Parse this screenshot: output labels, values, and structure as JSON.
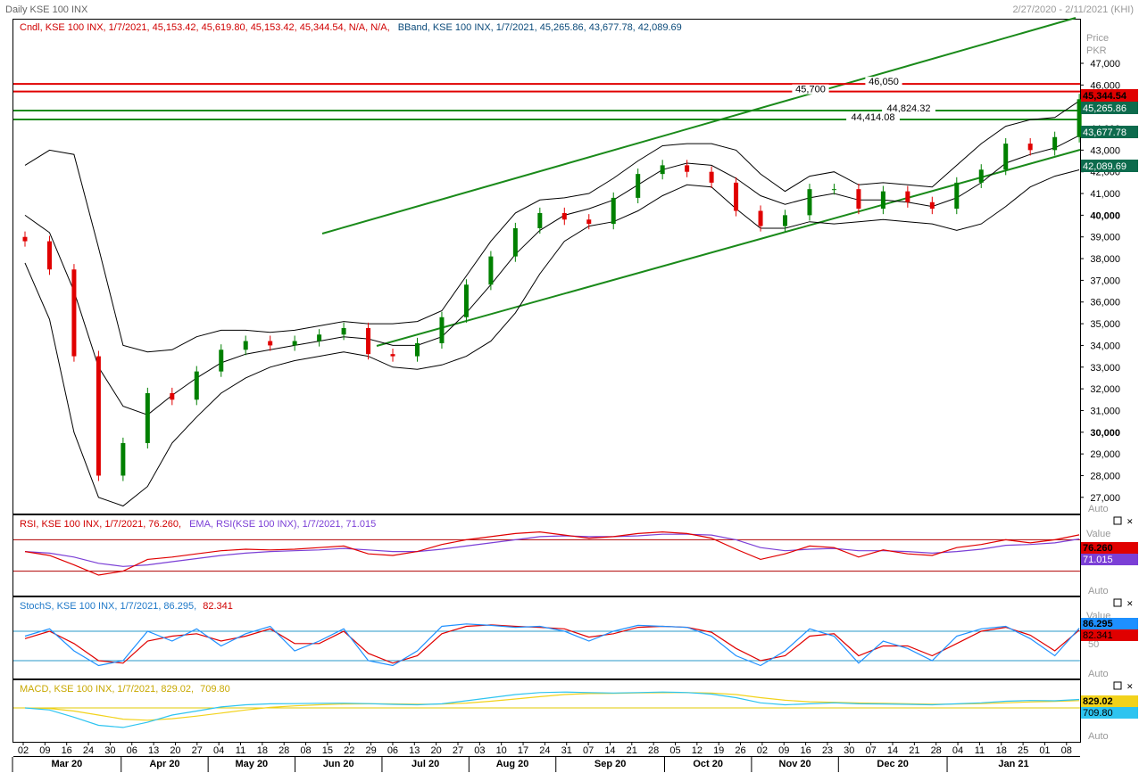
{
  "window": {
    "title": "Daily KSE 100 INX",
    "date_range": "2/27/2020 - 2/11/2021 (KHI)"
  },
  "colors": {
    "up": "#008000",
    "down": "#e00000",
    "band": "#000000",
    "channel": "#1a8a1a",
    "rsi": "#e00000",
    "rsi_ema": "#7b3fd6",
    "stoch_k": "#1e90ff",
    "stoch_d": "#e00000",
    "macd": "#f2d21b",
    "macd_signal": "#2ec4f0"
  },
  "price_panel": {
    "legend_cndl": "Cndl, KSE 100 INX, 1/7/2021, 45,153.42, 45,619.80, 45,153.42, 45,344.54, N/A, N/A,",
    "legend_bband": "BBand, KSE 100 INX, 1/7/2021, 45,265.86, 43,677.78, 42,089.69",
    "axis_title_1": "Price",
    "axis_title_2": "PKR",
    "auto_label": "Auto",
    "ticks": [
      "47,000",
      "46,000",
      "45,000",
      "44,000",
      "43,000",
      "42,000",
      "41,000",
      "40,000",
      "39,000",
      "38,000",
      "37,000",
      "36,000",
      "35,000",
      "34,000",
      "33,000",
      "32,000",
      "31,000",
      "30,000",
      "29,000",
      "28,000",
      "27,000"
    ],
    "tick_values": [
      47000,
      46000,
      45000,
      44000,
      43000,
      42000,
      41000,
      40000,
      39000,
      38000,
      37000,
      36000,
      35000,
      34000,
      33000,
      32000,
      31000,
      30000,
      29000,
      28000,
      27000
    ],
    "bold_ticks": [
      "40,000",
      "30,000"
    ],
    "hlines": [
      {
        "value": 46050,
        "label": "46,050",
        "color": "#e00000"
      },
      {
        "value": 45700,
        "label": "45,700",
        "color": "#e00000"
      },
      {
        "value": 44824.32,
        "label": "44,824.32",
        "color": "#1a8a1a"
      },
      {
        "value": 44414.08,
        "label": "44,414.08",
        "color": "#1a8a1a"
      }
    ],
    "badges": [
      {
        "value": 45344.54,
        "label": "45,344.54",
        "bg": "#e00000",
        "fg": "#000000"
      },
      {
        "value": 45265.86,
        "label": "45,265.86",
        "bg": "#0d6b4d",
        "fg": "#ffffff"
      },
      {
        "value": 43677.78,
        "label": "43,677.78",
        "bg": "#0d6b4d",
        "fg": "#ffffff"
      },
      {
        "value": 42089.69,
        "label": "42,089.69",
        "bg": "#0d6b4d",
        "fg": "#ffffff"
      }
    ]
  },
  "rsi_panel": {
    "legend_rsi": "RSI, KSE 100 INX, 1/7/2021, 76.260,",
    "legend_ema": "EMA, RSI(KSE 100 INX), 1/7/2021, 71.015",
    "axis_title": "Value",
    "auto_label": "Auto",
    "badge_rsi": "76.260",
    "badge_ema": "71.015"
  },
  "stoch_panel": {
    "legend_k": "StochS, KSE 100 INX, 1/7/2021, 86.295,",
    "legend_d": "82.341",
    "axis_title": "Value",
    "tick_50": "50",
    "auto_label": "Auto",
    "badge_k": "86.295",
    "badge_d": "82.341"
  },
  "macd_panel": {
    "legend_macd": "MACD, KSE 100 INX, 1/7/2021, 829.02,",
    "legend_signal": "709.80",
    "auto_label": "Auto",
    "badge_macd": "829.02",
    "badge_signal": "709.80"
  },
  "x_axis": {
    "days": [
      "02",
      "09",
      "16",
      "24",
      "30",
      "06",
      "13",
      "20",
      "27",
      "04",
      "11",
      "18",
      "28",
      "08",
      "15",
      "22",
      "29",
      "06",
      "13",
      "20",
      "27",
      "03",
      "10",
      "17",
      "24",
      "31",
      "07",
      "14",
      "21",
      "28",
      "05",
      "12",
      "19",
      "26",
      "02",
      "09",
      "16",
      "23",
      "30",
      "07",
      "14",
      "21",
      "28",
      "04",
      "11",
      "18",
      "25",
      "01",
      "08"
    ],
    "months": [
      {
        "label": "Mar 20",
        "day_index": 0
      },
      {
        "label": "Apr 20",
        "day_index": 5
      },
      {
        "label": "May 20",
        "day_index": 9
      },
      {
        "label": "Jun 20",
        "day_index": 13
      },
      {
        "label": "Jul 20",
        "day_index": 17
      },
      {
        "label": "Aug 20",
        "day_index": 21
      },
      {
        "label": "Sep 20",
        "day_index": 25
      },
      {
        "label": "Oct 20",
        "day_index": 30
      },
      {
        "label": "Nov 20",
        "day_index": 34
      },
      {
        "label": "Dec 20",
        "day_index": 38
      },
      {
        "label": "Jan 21",
        "day_index": 43
      }
    ]
  },
  "chart_data": {
    "type": "line",
    "title": "Daily KSE 100 INX",
    "ylabel": "Price PKR",
    "ylim": [
      26500,
      48000
    ],
    "week_labels": [
      "02 Mar",
      "09 Mar",
      "16 Mar",
      "24 Mar",
      "30 Mar",
      "06 Apr",
      "13 Apr",
      "20 Apr",
      "27 Apr",
      "04 May",
      "11 May",
      "18 May",
      "28 May",
      "08 Jun",
      "15 Jun",
      "22 Jun",
      "29 Jun",
      "06 Jul",
      "13 Jul",
      "20 Jul",
      "27 Jul",
      "03 Aug",
      "10 Aug",
      "17 Aug",
      "24 Aug",
      "31 Aug",
      "07 Sep",
      "14 Sep",
      "21 Sep",
      "28 Sep",
      "05 Oct",
      "12 Oct",
      "19 Oct",
      "26 Oct",
      "02 Nov",
      "09 Nov",
      "16 Nov",
      "23 Nov",
      "30 Nov",
      "07 Dec",
      "14 Dec",
      "21 Dec",
      "28 Dec",
      "04 Jan"
    ],
    "close": [
      38800,
      37500,
      33500,
      28000,
      29500,
      31800,
      31500,
      32800,
      33800,
      34200,
      34000,
      34200,
      34500,
      34800,
      33600,
      33500,
      34100,
      35300,
      36800,
      38100,
      39400,
      40100,
      39800,
      39600,
      40800,
      41900,
      42300,
      42000,
      41500,
      40200,
      39500,
      40000,
      41200,
      41200,
      40300,
      41100,
      40600,
      40300,
      41500,
      42100,
      43300,
      43000,
      43600,
      45344.54
    ],
    "series": [
      {
        "name": "BBand upper",
        "values": [
          42300,
          43000,
          42800,
          38500,
          34000,
          33700,
          33800,
          34400,
          34700,
          34700,
          34600,
          34700,
          34900,
          35100,
          35000,
          35000,
          35100,
          35600,
          37200,
          38800,
          40100,
          40700,
          40800,
          41000,
          41700,
          42500,
          43200,
          43300,
          43300,
          43000,
          41900,
          41100,
          41800,
          42000,
          41400,
          41500,
          41400,
          41300,
          42300,
          43300,
          44100,
          44400,
          44500,
          45265.86
        ]
      },
      {
        "name": "BBand middle",
        "values": [
          40000,
          39200,
          36500,
          33000,
          31200,
          30800,
          31700,
          32500,
          33200,
          33600,
          33800,
          34000,
          34200,
          34400,
          34300,
          34000,
          34000,
          34400,
          35500,
          36800,
          38200,
          39300,
          40000,
          40300,
          40700,
          41400,
          42100,
          42400,
          42300,
          41700,
          40900,
          40500,
          40800,
          41000,
          40700,
          40700,
          40600,
          40400,
          40800,
          41500,
          42400,
          42800,
          43100,
          43677.78
        ]
      },
      {
        "name": "BBand lower",
        "values": [
          37800,
          35200,
          30000,
          27000,
          26600,
          27500,
          29500,
          30700,
          31800,
          32500,
          33000,
          33300,
          33500,
          33700,
          33500,
          33000,
          32900,
          33100,
          33500,
          34200,
          35500,
          37300,
          38800,
          39500,
          39700,
          40200,
          40900,
          41400,
          41300,
          40300,
          39400,
          39400,
          39700,
          39600,
          39700,
          39800,
          39700,
          39600,
          39300,
          39600,
          40400,
          41300,
          41800,
          42089.69
        ]
      }
    ],
    "rsi": {
      "name": "RSI",
      "ylim": [
        0,
        100
      ],
      "levels": [
        70,
        30
      ],
      "last": 76.26,
      "ema_last": 71.015,
      "values": [
        55,
        50,
        38,
        25,
        30,
        45,
        48,
        52,
        56,
        58,
        57,
        58,
        60,
        62,
        52,
        50,
        55,
        64,
        70,
        74,
        78,
        80,
        76,
        72,
        74,
        78,
        80,
        78,
        72,
        58,
        45,
        52,
        62,
        60,
        48,
        57,
        52,
        50,
        60,
        64,
        70,
        66,
        70,
        76.26
      ],
      "ema": [
        55,
        53,
        48,
        40,
        36,
        38,
        42,
        46,
        50,
        53,
        55,
        56,
        57,
        59,
        57,
        55,
        55,
        58,
        62,
        66,
        70,
        74,
        75,
        74,
        74,
        75,
        77,
        77,
        76,
        70,
        60,
        56,
        58,
        59,
        56,
        56,
        55,
        53,
        55,
        58,
        63,
        64,
        66,
        71.015
      ]
    },
    "stoch": {
      "name": "StochS",
      "ylim": [
        0,
        100
      ],
      "levels": [
        80,
        20
      ],
      "k_last": 86.295,
      "d_last": 82.341,
      "k": [
        70,
        85,
        40,
        10,
        20,
        80,
        60,
        85,
        50,
        75,
        90,
        40,
        60,
        85,
        20,
        10,
        40,
        90,
        95,
        92,
        88,
        90,
        80,
        60,
        80,
        92,
        90,
        88,
        70,
        30,
        10,
        40,
        85,
        70,
        15,
        60,
        45,
        20,
        70,
        85,
        90,
        65,
        30,
        86.295
      ],
      "d": [
        65,
        80,
        55,
        20,
        15,
        60,
        70,
        75,
        60,
        70,
        85,
        55,
        55,
        80,
        35,
        15,
        30,
        75,
        90,
        93,
        90,
        88,
        85,
        68,
        75,
        88,
        90,
        88,
        78,
        45,
        20,
        30,
        70,
        75,
        30,
        50,
        50,
        30,
        55,
        80,
        88,
        72,
        40,
        82.341
      ]
    },
    "macd": {
      "name": "MACD",
      "last": 829.02,
      "signal_last": 709.8,
      "values": [
        0,
        -200,
        -900,
        -1700,
        -1900,
        -1400,
        -700,
        -300,
        100,
        300,
        400,
        420,
        450,
        460,
        420,
        350,
        300,
        400,
        700,
        1000,
        1300,
        1500,
        1550,
        1500,
        1450,
        1500,
        1550,
        1500,
        1350,
        1000,
        500,
        300,
        400,
        500,
        400,
        380,
        350,
        300,
        400,
        500,
        650,
        720,
        700,
        829.02
      ],
      "signal": [
        0,
        -50,
        -300,
        -700,
        -1100,
        -1200,
        -1050,
        -800,
        -500,
        -200,
        50,
        200,
        300,
        380,
        400,
        390,
        360,
        370,
        470,
        650,
        870,
        1100,
        1300,
        1400,
        1430,
        1460,
        1490,
        1500,
        1450,
        1300,
        1000,
        750,
        600,
        550,
        480,
        440,
        400,
        360,
        370,
        420,
        500,
        580,
        640,
        709.8
      ]
    }
  }
}
